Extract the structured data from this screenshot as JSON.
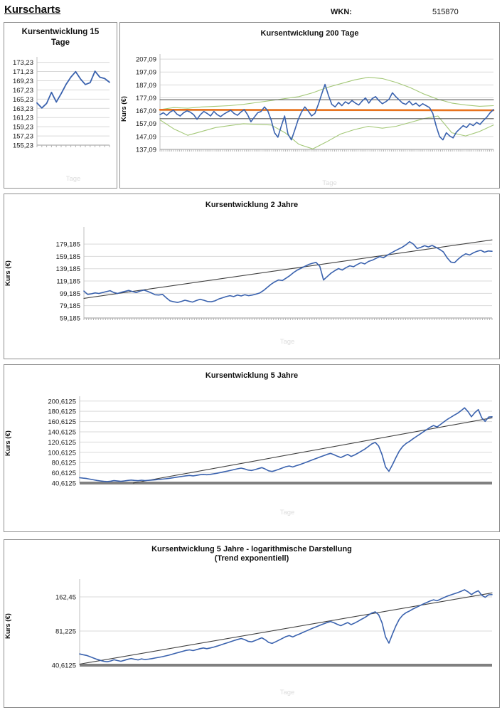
{
  "header": {
    "title": "Kurscharts",
    "wkn_label": "WKN:",
    "wkn_value": "515870"
  },
  "chart_data": [
    {
      "type": "line",
      "title": "Kursentwicklung 15 Tage",
      "xlabel": "Tage",
      "scale": "linear",
      "ylim": [
        155.23,
        174.4
      ],
      "yticks": [
        "173,23",
        "171,23",
        "169,23",
        "167,23",
        "165,23",
        "163,23",
        "161,23",
        "159,23",
        "157,23",
        "155,23"
      ],
      "axis_style": "small-ticks",
      "grid": true,
      "series": [
        {
          "name": "kurs-linie",
          "color": "#3A62AE",
          "width": 1.8,
          "values": [
            164.4,
            163.3,
            164.3,
            166.7,
            164.6,
            166.4,
            168.4,
            170.0,
            171.2,
            169.6,
            168.4,
            168.8,
            171.3,
            170.0,
            169.7,
            168.9
          ]
        }
      ]
    },
    {
      "type": "line",
      "title": "Kursentwicklung 200 Tage",
      "ylabel": "Kurs (€)",
      "xlabel": "Tage",
      "scale": "linear",
      "ylim": [
        137.09,
        211
      ],
      "yticks": [
        "207,09",
        "197,09",
        "187,09",
        "177,09",
        "167,09",
        "157,09",
        "147,09",
        "137,09"
      ],
      "axis_style": "dense-ticks",
      "grid": true,
      "series": [
        {
          "name": "oberes-band",
          "color": "#A4C878",
          "width": 1.1,
          "values": [
            168,
            169.5,
            169,
            170,
            170.5,
            171,
            172,
            173.5,
            175,
            176.5,
            178,
            181,
            185,
            188,
            191,
            193,
            192,
            189,
            185,
            180,
            176,
            173,
            171.5,
            170.5,
            171
          ]
        },
        {
          "name": "unteres-band",
          "color": "#A4C878",
          "width": 1.1,
          "values": [
            160,
            153,
            148,
            151,
            154,
            155.5,
            157,
            156.5,
            156,
            150,
            141,
            137.5,
            143,
            149,
            152.5,
            155,
            153.5,
            155,
            158,
            161,
            163,
            150,
            147.5,
            151,
            156
          ]
        },
        {
          "name": "referenzlinie-oben",
          "color": "#5A5A5A",
          "width": 1.2,
          "x": [
            0,
            1
          ],
          "values": [
            175.6,
            175.6
          ]
        },
        {
          "name": "referenzlinie-unten",
          "color": "#5A5A5A",
          "width": 1.2,
          "x": [
            0,
            1
          ],
          "values": [
            160.9,
            160.9
          ]
        },
        {
          "name": "gleitender-durchschnitt",
          "color": "#E8731E",
          "width": 2.6,
          "x": [
            0,
            1
          ],
          "values": [
            167.8,
            167.4
          ]
        },
        {
          "name": "kurs-linie",
          "color": "#3A62AE",
          "width": 1.6,
          "values": [
            164,
            165.5,
            163.5,
            166,
            167.5,
            164.5,
            163,
            165.5,
            167,
            166,
            164,
            160.5,
            164,
            166.5,
            165,
            163,
            166.5,
            164,
            162.5,
            164.5,
            166,
            167.5,
            165,
            163.5,
            166,
            168,
            164,
            158.5,
            162,
            165.5,
            166.5,
            170,
            167,
            160,
            150,
            146.5,
            155,
            163,
            149,
            144.5,
            152,
            160,
            166,
            170,
            167,
            163,
            165,
            172,
            180,
            187.5,
            179,
            172,
            170,
            173.5,
            171,
            174,
            172.5,
            175,
            173,
            171.5,
            174.5,
            177,
            173,
            176.5,
            178,
            175,
            172.5,
            174,
            176,
            181,
            178,
            175.5,
            173,
            172,
            174.5,
            171.5,
            173,
            170.5,
            172.5,
            171,
            169.5,
            165,
            155,
            147,
            144.5,
            150,
            147.5,
            146,
            150.5,
            153,
            155.5,
            154,
            157,
            155.5,
            158,
            156.5,
            159.5,
            162,
            165.5,
            168
          ]
        }
      ]
    },
    {
      "type": "line",
      "title": "Kursentwicklung 2 Jahre",
      "ylabel": "Kurs (€)",
      "xlabel": "Tage",
      "scale": "linear",
      "ylim": [
        59.185,
        207
      ],
      "yticks": [
        "179,185",
        "159,185",
        "139,185",
        "119,185",
        "99,185",
        "79,185",
        "59,185"
      ],
      "axis_style": "dense-ticks",
      "grid": true,
      "series": [
        {
          "name": "trendlinie",
          "color": "#404040",
          "width": 1.1,
          "x": [
            0,
            1
          ],
          "values": [
            91,
            186
          ]
        },
        {
          "name": "kurs-linie",
          "color": "#3A62AE",
          "width": 1.6,
          "values": [
            103,
            97.5,
            98.5,
            100,
            99,
            100.5,
            102,
            103.5,
            100.5,
            99,
            101,
            102.5,
            104,
            102,
            100.5,
            103,
            104.5,
            102.5,
            100,
            97,
            96.5,
            97.5,
            92,
            87,
            85.5,
            84.5,
            86,
            88,
            86.5,
            85,
            87.5,
            89.5,
            88,
            86,
            85.5,
            87,
            90,
            92,
            94,
            95.5,
            94,
            96.5,
            95,
            97,
            95.5,
            96.5,
            98,
            100,
            104,
            109,
            114,
            118,
            121,
            120,
            124,
            128,
            133,
            137,
            140,
            143,
            146,
            148,
            149.5,
            143,
            121,
            126.5,
            132,
            136,
            139.5,
            137,
            141,
            144,
            142.5,
            146,
            149,
            147,
            151,
            153,
            156,
            159,
            157,
            161,
            164.5,
            168,
            171,
            174,
            178,
            183,
            179,
            172,
            174,
            176.5,
            174.5,
            177,
            174,
            170.5,
            166.5,
            157,
            150,
            149,
            155,
            160,
            163.5,
            161.5,
            165,
            167.5,
            169,
            166,
            168,
            167.5
          ]
        }
      ]
    },
    {
      "type": "line",
      "title": "Kursentwicklung 5 Jahre",
      "ylabel": "Kurs (€)",
      "xlabel": "Tage",
      "scale": "linear",
      "ylim": [
        40.6125,
        210
      ],
      "yticks": [
        "200,6125",
        "180,6125",
        "160,6125",
        "140,6125",
        "120,6125",
        "100,6125",
        "80,6125",
        "60,6125",
        "40,6125"
      ],
      "axis_style": "thick",
      "grid": true,
      "series": [
        {
          "name": "trendlinie",
          "color": "#404040",
          "width": 1.1,
          "x": [
            0.13,
            1
          ],
          "values": [
            40.6,
            168
          ]
        },
        {
          "name": "kurs-linie",
          "color": "#3A62AE",
          "width": 1.6,
          "values": [
            51,
            50.2,
            49.5,
            48.3,
            47,
            45.8,
            44.8,
            44,
            43.5,
            44.2,
            45.3,
            44.6,
            44,
            44.8,
            45.8,
            46.5,
            45.8,
            45.2,
            46.2,
            45.5,
            45.9,
            46.4,
            47,
            47.6,
            48.2,
            49,
            49.8,
            50.8,
            51.8,
            52.8,
            53.8,
            54.8,
            55.4,
            54.6,
            55.6,
            56.8,
            57.6,
            56.8,
            57.6,
            58.6,
            59.8,
            61.2,
            62.6,
            64,
            65.5,
            67,
            68.5,
            69.8,
            68.3,
            66,
            65.2,
            66.8,
            68.8,
            70.8,
            68,
            64.5,
            63.2,
            65.2,
            67.5,
            70,
            72.5,
            74,
            72,
            74.5,
            76.5,
            79,
            81.5,
            84,
            86.5,
            89,
            91.5,
            94,
            96.5,
            98.5,
            96,
            93,
            90.5,
            93.5,
            96.5,
            92.5,
            95.5,
            99,
            103,
            107,
            112,
            117,
            120,
            113,
            96,
            72,
            63.5,
            76,
            90,
            103,
            112,
            118,
            122,
            127,
            131.5,
            136,
            140.5,
            145,
            149.5,
            153,
            150,
            155,
            160,
            165,
            169,
            173,
            177,
            182,
            187.5,
            180,
            170,
            178,
            184,
            168,
            161,
            169.5,
            170
          ]
        }
      ]
    },
    {
      "type": "line",
      "title": "Kursentwicklung 5 Jahre - logarithmische Darstellung",
      "subtitle": "(Trend exponentiell)",
      "ylabel": "Kurs (€)",
      "xlabel": "Tage",
      "scale": "log",
      "ylim": [
        40.6125,
        233
      ],
      "yticks": [
        "162,45",
        "81,225",
        "40,6125"
      ],
      "axis_style": "thick",
      "grid": true,
      "series": [
        {
          "name": "trendlinie-exponentiell",
          "color": "#404040",
          "width": 1.1,
          "x": [
            0,
            1
          ],
          "values": [
            41.5,
            176
          ]
        },
        {
          "name": "kurs-linie",
          "color": "#3A62AE",
          "width": 1.6,
          "values": [
            51,
            50.2,
            49.5,
            48.3,
            47,
            45.8,
            44.8,
            44,
            43.5,
            44.2,
            45.3,
            44.6,
            44,
            44.8,
            45.8,
            46.5,
            45.8,
            45.2,
            46.2,
            45.5,
            45.9,
            46.4,
            47,
            47.6,
            48.2,
            49,
            49.8,
            50.8,
            51.8,
            52.8,
            53.8,
            54.8,
            55.4,
            54.6,
            55.6,
            56.8,
            57.6,
            56.8,
            57.6,
            58.6,
            59.8,
            61.2,
            62.6,
            64,
            65.5,
            67,
            68.5,
            69.8,
            68.3,
            66,
            65.2,
            66.8,
            68.8,
            70.8,
            68,
            64.5,
            63.2,
            65.2,
            67.5,
            70,
            72.5,
            74,
            72,
            74.5,
            76.5,
            79,
            81.5,
            84,
            86.5,
            89,
            91.5,
            94,
            96.5,
            98.5,
            96,
            93,
            90.5,
            93.5,
            96.5,
            92.5,
            95.5,
            99,
            103,
            107,
            112,
            117,
            120,
            113,
            96,
            72,
            63.5,
            76,
            90,
            103,
            112,
            118,
            122,
            127,
            131.5,
            136,
            140.5,
            145,
            149.5,
            153,
            150,
            155,
            160,
            165,
            169,
            173,
            177,
            182,
            187.5,
            180,
            170,
            178,
            184,
            168,
            161,
            169.5,
            170
          ]
        }
      ]
    }
  ]
}
